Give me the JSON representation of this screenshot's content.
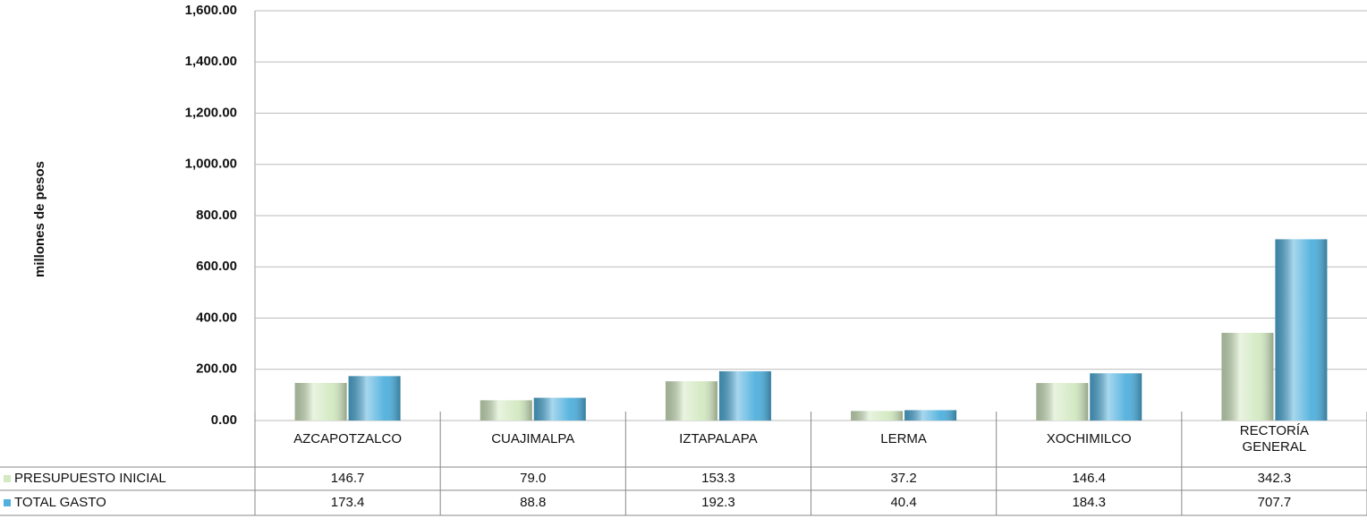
{
  "chart_data": {
    "type": "bar",
    "y_axis_label": "millones de pesos",
    "categories": [
      "AZCAPOTZALCO",
      "CUAJIMALPA",
      "IZTAPALAPA",
      "LERMA",
      "XOCHIMILCO",
      "RECTORÍA GENERAL"
    ],
    "series": [
      {
        "name": "PRESUPUESTO INICIAL",
        "color": "#d3e9c2",
        "values": [
          146.7,
          79.0,
          153.3,
          37.2,
          146.4,
          342.3
        ],
        "value_labels": [
          "146.7",
          "79.0",
          "153.3",
          "37.2",
          "146.4",
          "342.3"
        ]
      },
      {
        "name": "TOTAL GASTO",
        "color": "#4fb0dd",
        "values": [
          173.4,
          88.8,
          192.3,
          40.4,
          184.3,
          707.7
        ],
        "value_labels": [
          "173.4",
          "88.8",
          "192.3",
          "40.4",
          "184.3",
          "707.7"
        ]
      }
    ],
    "ylim": [
      0,
      1600
    ],
    "yticks": [
      {
        "value": 0,
        "label": "0.00"
      },
      {
        "value": 200,
        "label": "200.00"
      },
      {
        "value": 400,
        "label": "400.00"
      },
      {
        "value": 600,
        "label": "600.00"
      },
      {
        "value": 800,
        "label": "800.00"
      },
      {
        "value": 1000,
        "label": "1,000.00"
      },
      {
        "value": 1200,
        "label": "1,200.00"
      },
      {
        "value": 1400,
        "label": "1,400.00"
      },
      {
        "value": 1600,
        "label": "1,600.00"
      }
    ],
    "grid": true
  }
}
